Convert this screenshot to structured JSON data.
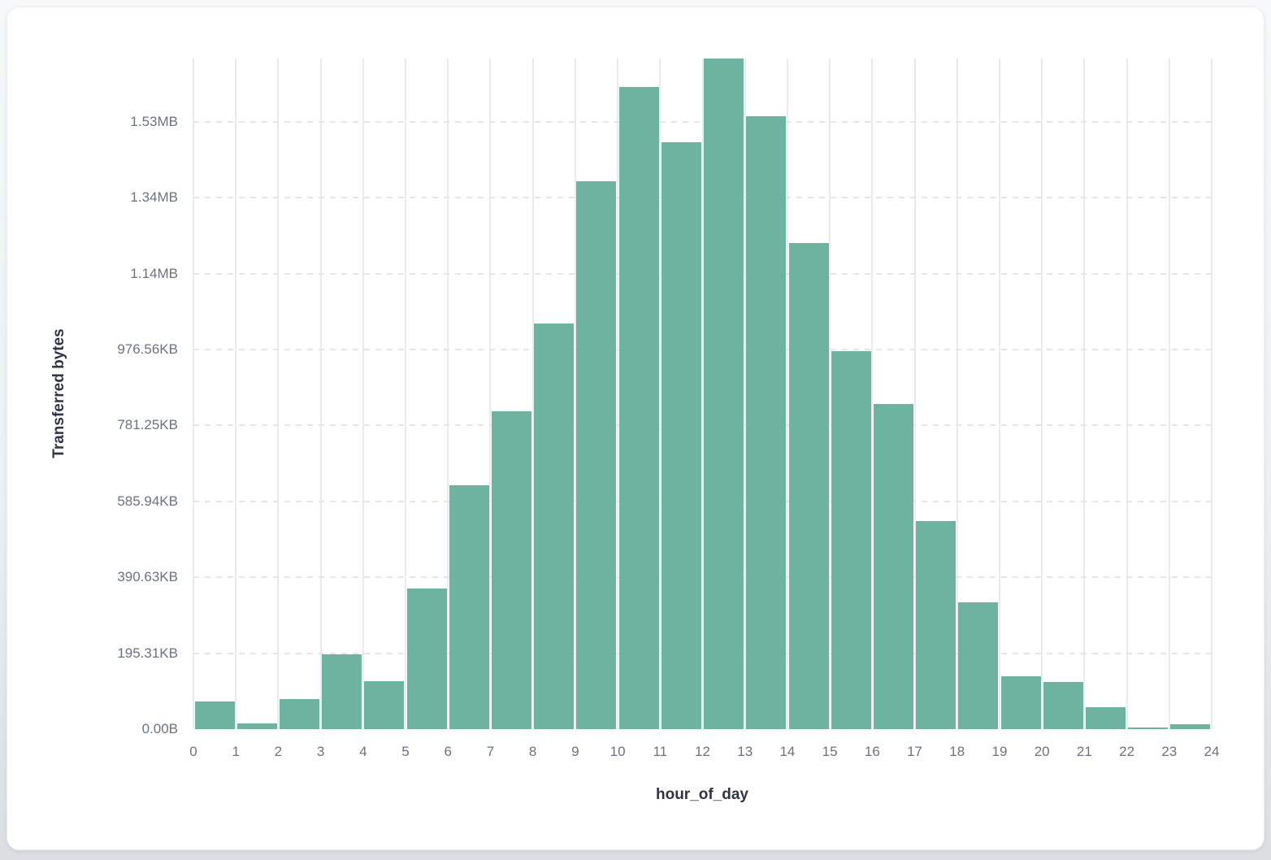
{
  "page": {
    "background_top": "#f7f8fa",
    "background_bottom": "#dcdee2",
    "card_background": "#ffffff"
  },
  "chart_data": {
    "type": "bar",
    "title": "",
    "xlabel": "hour_of_day",
    "ylabel": "Transferred bytes",
    "legend": false,
    "grid": true,
    "bar_color": "#6db3a0",
    "vgrid_color": "#e9ebef",
    "hgrid_dash_color": "#e3e5ea",
    "tick_text_color": "#6b7280",
    "axis_title_color": "#2f3542",
    "x_tick_labels": [
      "0",
      "1",
      "2",
      "3",
      "4",
      "5",
      "6",
      "7",
      "8",
      "9",
      "10",
      "11",
      "12",
      "13",
      "14",
      "15",
      "16",
      "17",
      "18",
      "19",
      "20",
      "21",
      "22",
      "23",
      "24"
    ],
    "y_ticks": [
      {
        "label": "0.00B",
        "bytes": 0
      },
      {
        "label": "195.31KB",
        "bytes": 200000
      },
      {
        "label": "390.63KB",
        "bytes": 400000
      },
      {
        "label": "585.94KB",
        "bytes": 600000
      },
      {
        "label": "781.25KB",
        "bytes": 800000
      },
      {
        "label": "976.56KB",
        "bytes": 1000000
      },
      {
        "label": "1.14MB",
        "bytes": 1200000
      },
      {
        "label": "1.34MB",
        "bytes": 1400000
      },
      {
        "label": "1.53MB",
        "bytes": 1600000
      }
    ],
    "categories": [
      0,
      1,
      2,
      3,
      4,
      5,
      6,
      7,
      8,
      9,
      10,
      11,
      12,
      13,
      14,
      15,
      16,
      17,
      18,
      19,
      20,
      21,
      22,
      23
    ],
    "values_bytes": [
      72800,
      15000,
      79200,
      197000,
      126400,
      370500,
      642600,
      837500,
      1068900,
      1443700,
      1692100,
      1546500,
      1767000,
      1615000,
      1280900,
      996000,
      856800,
      548400,
      334100,
      139200,
      124200,
      57800,
      4300,
      12900
    ],
    "ylim_bytes": [
      0,
      1767000
    ]
  }
}
